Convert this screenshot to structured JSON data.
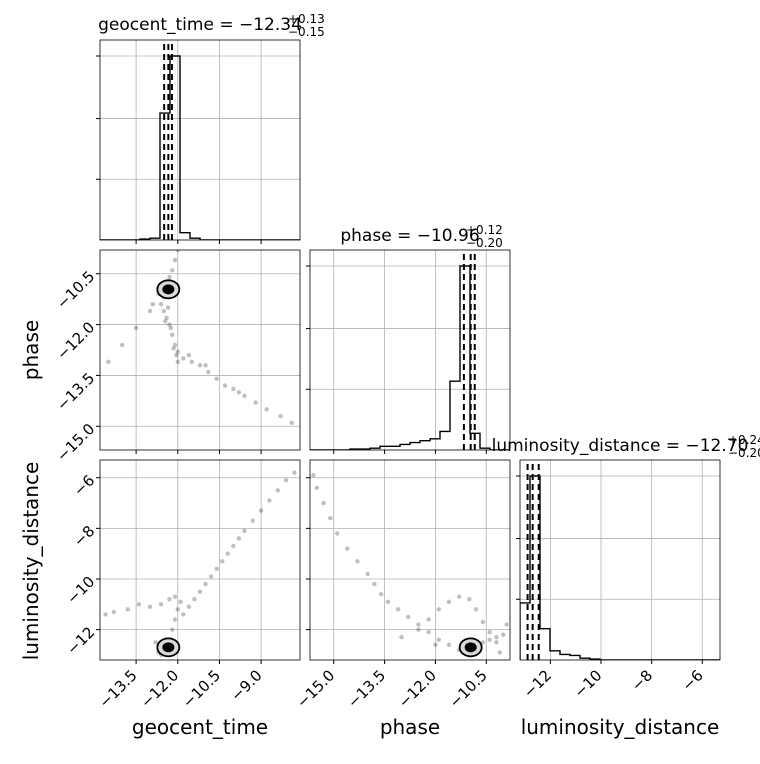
{
  "chart_data": {
    "type": "scatter",
    "kind": "corner-plot",
    "parameters": [
      "geocent_time",
      "phase",
      "luminosity_distance"
    ],
    "titles": [
      {
        "param": "geocent_time",
        "prefix": "geocent_time = ",
        "median": "−12.34",
        "plus": "+0.13",
        "minus": "−0.15"
      },
      {
        "param": "phase",
        "prefix": "phase = ",
        "median": "−10.96",
        "plus": "+0.12",
        "minus": "−0.20"
      },
      {
        "param": "luminosity_distance",
        "prefix": "luminosity_distance = ",
        "median": "−12.70",
        "plus": "+0.24",
        "minus": "−0.20"
      }
    ],
    "axes": {
      "geocent_time": {
        "range": [
          -14.8,
          -7.6
        ],
        "ticks": [
          -13.5,
          -12.0,
          -10.5,
          -9.0
        ],
        "tick_labels": [
          "−13.5",
          "−12.0",
          "−10.5",
          "−9.0"
        ],
        "label": "geocent_time"
      },
      "phase": {
        "range": [
          -15.7,
          -9.8
        ],
        "ticks": [
          -15.0,
          -13.5,
          -12.0,
          -10.5
        ],
        "tick_labels": [
          "−15.0",
          "−13.5",
          "−12.0",
          "−10.5"
        ],
        "label": "phase"
      },
      "luminosity_distance": {
        "range": [
          -13.2,
          -5.3
        ],
        "ticks": [
          -12,
          -10,
          -8,
          -6
        ],
        "tick_labels": [
          "−12",
          "−10",
          "−8",
          "−6"
        ],
        "label": "luminosity_distance"
      }
    },
    "grid": true,
    "quantile_lines": {
      "geocent_time": [
        -12.49,
        -12.34,
        -12.21
      ],
      "phase": [
        -11.16,
        -10.96,
        -10.84
      ],
      "luminosity_distance": [
        -12.9,
        -12.7,
        -12.46
      ]
    },
    "histograms": {
      "geocent_time": {
        "bin_edges": [
          -14.8,
          -14.44,
          -14.08,
          -13.72,
          -13.36,
          -13.0,
          -12.64,
          -12.28,
          -11.92,
          -11.56,
          -11.2,
          -10.84,
          -10.48,
          -10.12,
          -9.76,
          -9.4,
          -9.04,
          -8.68,
          -8.32,
          -7.96,
          -7.6
        ],
        "counts": [
          0,
          0,
          0,
          0,
          0.005,
          0.01,
          0.69,
          1.0,
          0.04,
          0.01,
          0,
          0,
          0,
          0,
          0,
          0,
          0,
          0,
          0,
          0
        ]
      },
      "phase": {
        "bin_edges": [
          -15.7,
          -15.405,
          -15.11,
          -14.815,
          -14.52,
          -14.225,
          -13.93,
          -13.635,
          -13.34,
          -13.045,
          -12.75,
          -12.455,
          -12.16,
          -11.865,
          -11.57,
          -11.275,
          -10.98,
          -10.685,
          -10.39,
          -10.095,
          -9.8
        ],
        "counts": [
          0,
          0,
          0,
          0,
          0.005,
          0.005,
          0.01,
          0.02,
          0.02,
          0.03,
          0.04,
          0.05,
          0.06,
          0.1,
          0.37,
          0.99,
          0.09,
          0.01,
          0,
          0
        ]
      },
      "luminosity_distance": {
        "bin_edges": [
          -13.2,
          -12.805,
          -12.41,
          -12.015,
          -11.62,
          -11.225,
          -10.83,
          -10.435,
          -10.04,
          -9.645,
          -9.25,
          -8.855,
          -8.46,
          -8.065,
          -7.67,
          -7.275,
          -6.88,
          -6.485,
          -6.09,
          -5.695,
          -5.3
        ],
        "counts": [
          0.31,
          1.0,
          0.17,
          0.05,
          0.03,
          0.025,
          0.01,
          0.005,
          0,
          0,
          0,
          0,
          0,
          0,
          0,
          0,
          0,
          0,
          0,
          0
        ]
      }
    },
    "scatter_pairs": [
      {
        "x": "geocent_time",
        "y": "phase",
        "points": [
          [
            -12.3,
            -10.9
          ],
          [
            -12.2,
            -11.0
          ],
          [
            -12.4,
            -11.1
          ],
          [
            -12.5,
            -11.2
          ],
          [
            -12.6,
            -11.4
          ],
          [
            -12.5,
            -11.6
          ],
          [
            -12.4,
            -11.8
          ],
          [
            -12.3,
            -12.0
          ],
          [
            -12.2,
            -12.3
          ],
          [
            -12.1,
            -12.6
          ],
          [
            -12.0,
            -12.8
          ],
          [
            -11.8,
            -13.0
          ],
          [
            -11.5,
            -13.1
          ],
          [
            -11.2,
            -13.2
          ],
          [
            -10.9,
            -13.4
          ],
          [
            -10.6,
            -13.6
          ],
          [
            -10.3,
            -13.8
          ],
          [
            -10.0,
            -13.9
          ],
          [
            -9.6,
            -14.1
          ],
          [
            -9.2,
            -14.3
          ],
          [
            -8.8,
            -14.5
          ],
          [
            -8.3,
            -14.7
          ],
          [
            -7.9,
            -14.9
          ],
          [
            -12.2,
            -10.4
          ],
          [
            -12.1,
            -10.1
          ],
          [
            -12.0,
            -9.8
          ],
          [
            -12.3,
            -10.6
          ],
          [
            -12.35,
            -11.5
          ],
          [
            -12.45,
            -11.9
          ],
          [
            -13.0,
            -11.6
          ],
          [
            -13.5,
            -12.1
          ],
          [
            -14.0,
            -12.6
          ],
          [
            -14.5,
            -13.1
          ],
          [
            -12.9,
            -11.4
          ],
          [
            -12.7,
            -11.1
          ],
          [
            -11.6,
            -12.9
          ],
          [
            -11.0,
            -13.2
          ],
          [
            -9.8,
            -14.0
          ],
          [
            -12.25,
            -12.1
          ],
          [
            -12.15,
            -12.7
          ],
          [
            -12.05,
            -12.9
          ],
          [
            -12.0,
            -13.1
          ]
        ]
      },
      {
        "x": "geocent_time",
        "y": "luminosity_distance",
        "points": [
          [
            -12.3,
            -12.7
          ],
          [
            -12.4,
            -12.8
          ],
          [
            -12.2,
            -12.6
          ],
          [
            -12.5,
            -12.9
          ],
          [
            -12.6,
            -13.0
          ],
          [
            -12.3,
            -12.4
          ],
          [
            -12.2,
            -12.0
          ],
          [
            -12.1,
            -11.6
          ],
          [
            -12.0,
            -11.2
          ],
          [
            -11.9,
            -10.9
          ],
          [
            -12.1,
            -10.7
          ],
          [
            -12.3,
            -10.8
          ],
          [
            -12.6,
            -11.0
          ],
          [
            -13.0,
            -11.1
          ],
          [
            -13.4,
            -11.0
          ],
          [
            -13.8,
            -11.2
          ],
          [
            -14.3,
            -11.3
          ],
          [
            -14.6,
            -11.4
          ],
          [
            -11.8,
            -11.4
          ],
          [
            -11.6,
            -11.1
          ],
          [
            -11.4,
            -10.8
          ],
          [
            -11.2,
            -10.5
          ],
          [
            -11.0,
            -10.2
          ],
          [
            -10.8,
            -9.9
          ],
          [
            -10.6,
            -9.6
          ],
          [
            -10.4,
            -9.3
          ],
          [
            -10.2,
            -9.0
          ],
          [
            -10.0,
            -8.7
          ],
          [
            -9.8,
            -8.4
          ],
          [
            -9.6,
            -8.1
          ],
          [
            -9.3,
            -7.7
          ],
          [
            -9.0,
            -7.3
          ],
          [
            -8.7,
            -6.9
          ],
          [
            -8.4,
            -6.5
          ],
          [
            -8.1,
            -6.1
          ],
          [
            -7.8,
            -5.8
          ],
          [
            -12.7,
            -12.9
          ],
          [
            -12.4,
            -12.9
          ],
          [
            -12.8,
            -12.5
          ]
        ]
      },
      {
        "x": "phase",
        "y": "luminosity_distance",
        "points": [
          [
            -11.0,
            -12.7
          ],
          [
            -10.8,
            -12.6
          ],
          [
            -10.6,
            -12.5
          ],
          [
            -10.4,
            -12.4
          ],
          [
            -10.2,
            -12.3
          ],
          [
            -10.0,
            -12.2
          ],
          [
            -11.3,
            -12.8
          ],
          [
            -11.6,
            -12.6
          ],
          [
            -11.9,
            -12.4
          ],
          [
            -12.2,
            -12.1
          ],
          [
            -12.5,
            -11.8
          ],
          [
            -12.8,
            -11.5
          ],
          [
            -13.1,
            -11.2
          ],
          [
            -13.4,
            -10.9
          ],
          [
            -13.6,
            -10.6
          ],
          [
            -13.8,
            -10.2
          ],
          [
            -14.0,
            -9.8
          ],
          [
            -14.3,
            -9.3
          ],
          [
            -14.6,
            -8.8
          ],
          [
            -14.9,
            -8.2
          ],
          [
            -15.1,
            -7.6
          ],
          [
            -15.3,
            -7.0
          ],
          [
            -15.5,
            -6.4
          ],
          [
            -15.6,
            -5.9
          ],
          [
            -12.5,
            -12.0
          ],
          [
            -12.2,
            -11.6
          ],
          [
            -11.9,
            -11.2
          ],
          [
            -11.6,
            -10.9
          ],
          [
            -11.3,
            -10.7
          ],
          [
            -11.0,
            -10.8
          ],
          [
            -10.8,
            -11.2
          ],
          [
            -10.6,
            -11.7
          ],
          [
            -10.4,
            -12.1
          ],
          [
            -13.0,
            -12.3
          ],
          [
            -12.0,
            -12.6
          ],
          [
            -10.2,
            -12.5
          ],
          [
            -9.9,
            -11.8
          ],
          [
            -10.1,
            -12.9
          ],
          [
            -11.2,
            -12.9
          ]
        ]
      }
    ]
  }
}
